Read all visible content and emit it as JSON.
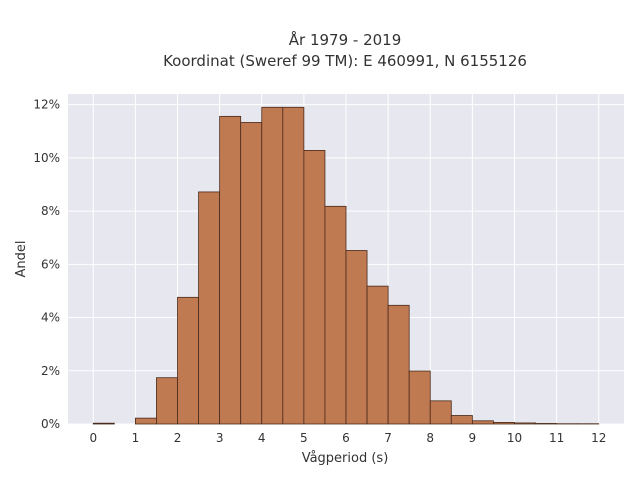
{
  "chart_data": {
    "type": "bar",
    "title_line1": "År 1979 - 2019",
    "title_line2": "Koordinat (Sweref 99 TM): E 460991, N 6155126",
    "xlabel": "Vågperiod (s)",
    "ylabel": "Andel",
    "x_ticks": [
      "0",
      "1",
      "2",
      "3",
      "4",
      "5",
      "6",
      "7",
      "8",
      "9",
      "10",
      "11",
      "12"
    ],
    "y_ticks": [
      "0%",
      "2%",
      "4%",
      "6%",
      "8%",
      "10%",
      "12%"
    ],
    "xlim": [
      -0.6,
      12.6
    ],
    "ylim": [
      0,
      12.4
    ],
    "bin_width": 0.5,
    "bins": [
      {
        "start": 0.0,
        "value": 0.03
      },
      {
        "start": 1.0,
        "value": 0.22
      },
      {
        "start": 1.5,
        "value": 1.74
      },
      {
        "start": 2.0,
        "value": 4.76
      },
      {
        "start": 2.5,
        "value": 8.72
      },
      {
        "start": 3.0,
        "value": 11.56
      },
      {
        "start": 3.5,
        "value": 11.33
      },
      {
        "start": 4.0,
        "value": 11.9
      },
      {
        "start": 4.5,
        "value": 11.9
      },
      {
        "start": 5.0,
        "value": 10.28
      },
      {
        "start": 5.5,
        "value": 8.18
      },
      {
        "start": 6.0,
        "value": 6.52
      },
      {
        "start": 6.5,
        "value": 5.18
      },
      {
        "start": 7.0,
        "value": 4.46
      },
      {
        "start": 7.5,
        "value": 1.99
      },
      {
        "start": 8.0,
        "value": 0.87
      },
      {
        "start": 8.5,
        "value": 0.32
      },
      {
        "start": 9.0,
        "value": 0.12
      },
      {
        "start": 9.5,
        "value": 0.06
      },
      {
        "start": 10.0,
        "value": 0.04
      },
      {
        "start": 10.5,
        "value": 0.02
      },
      {
        "start": 11.0,
        "value": 0.01
      },
      {
        "start": 11.5,
        "value": 0.01
      }
    ],
    "grid": true,
    "colors": {
      "bar_fill": "#c07a52",
      "bar_stroke": "#4a2a1a",
      "plot_background": "#e6e7ef",
      "grid": "#ffffff"
    }
  }
}
